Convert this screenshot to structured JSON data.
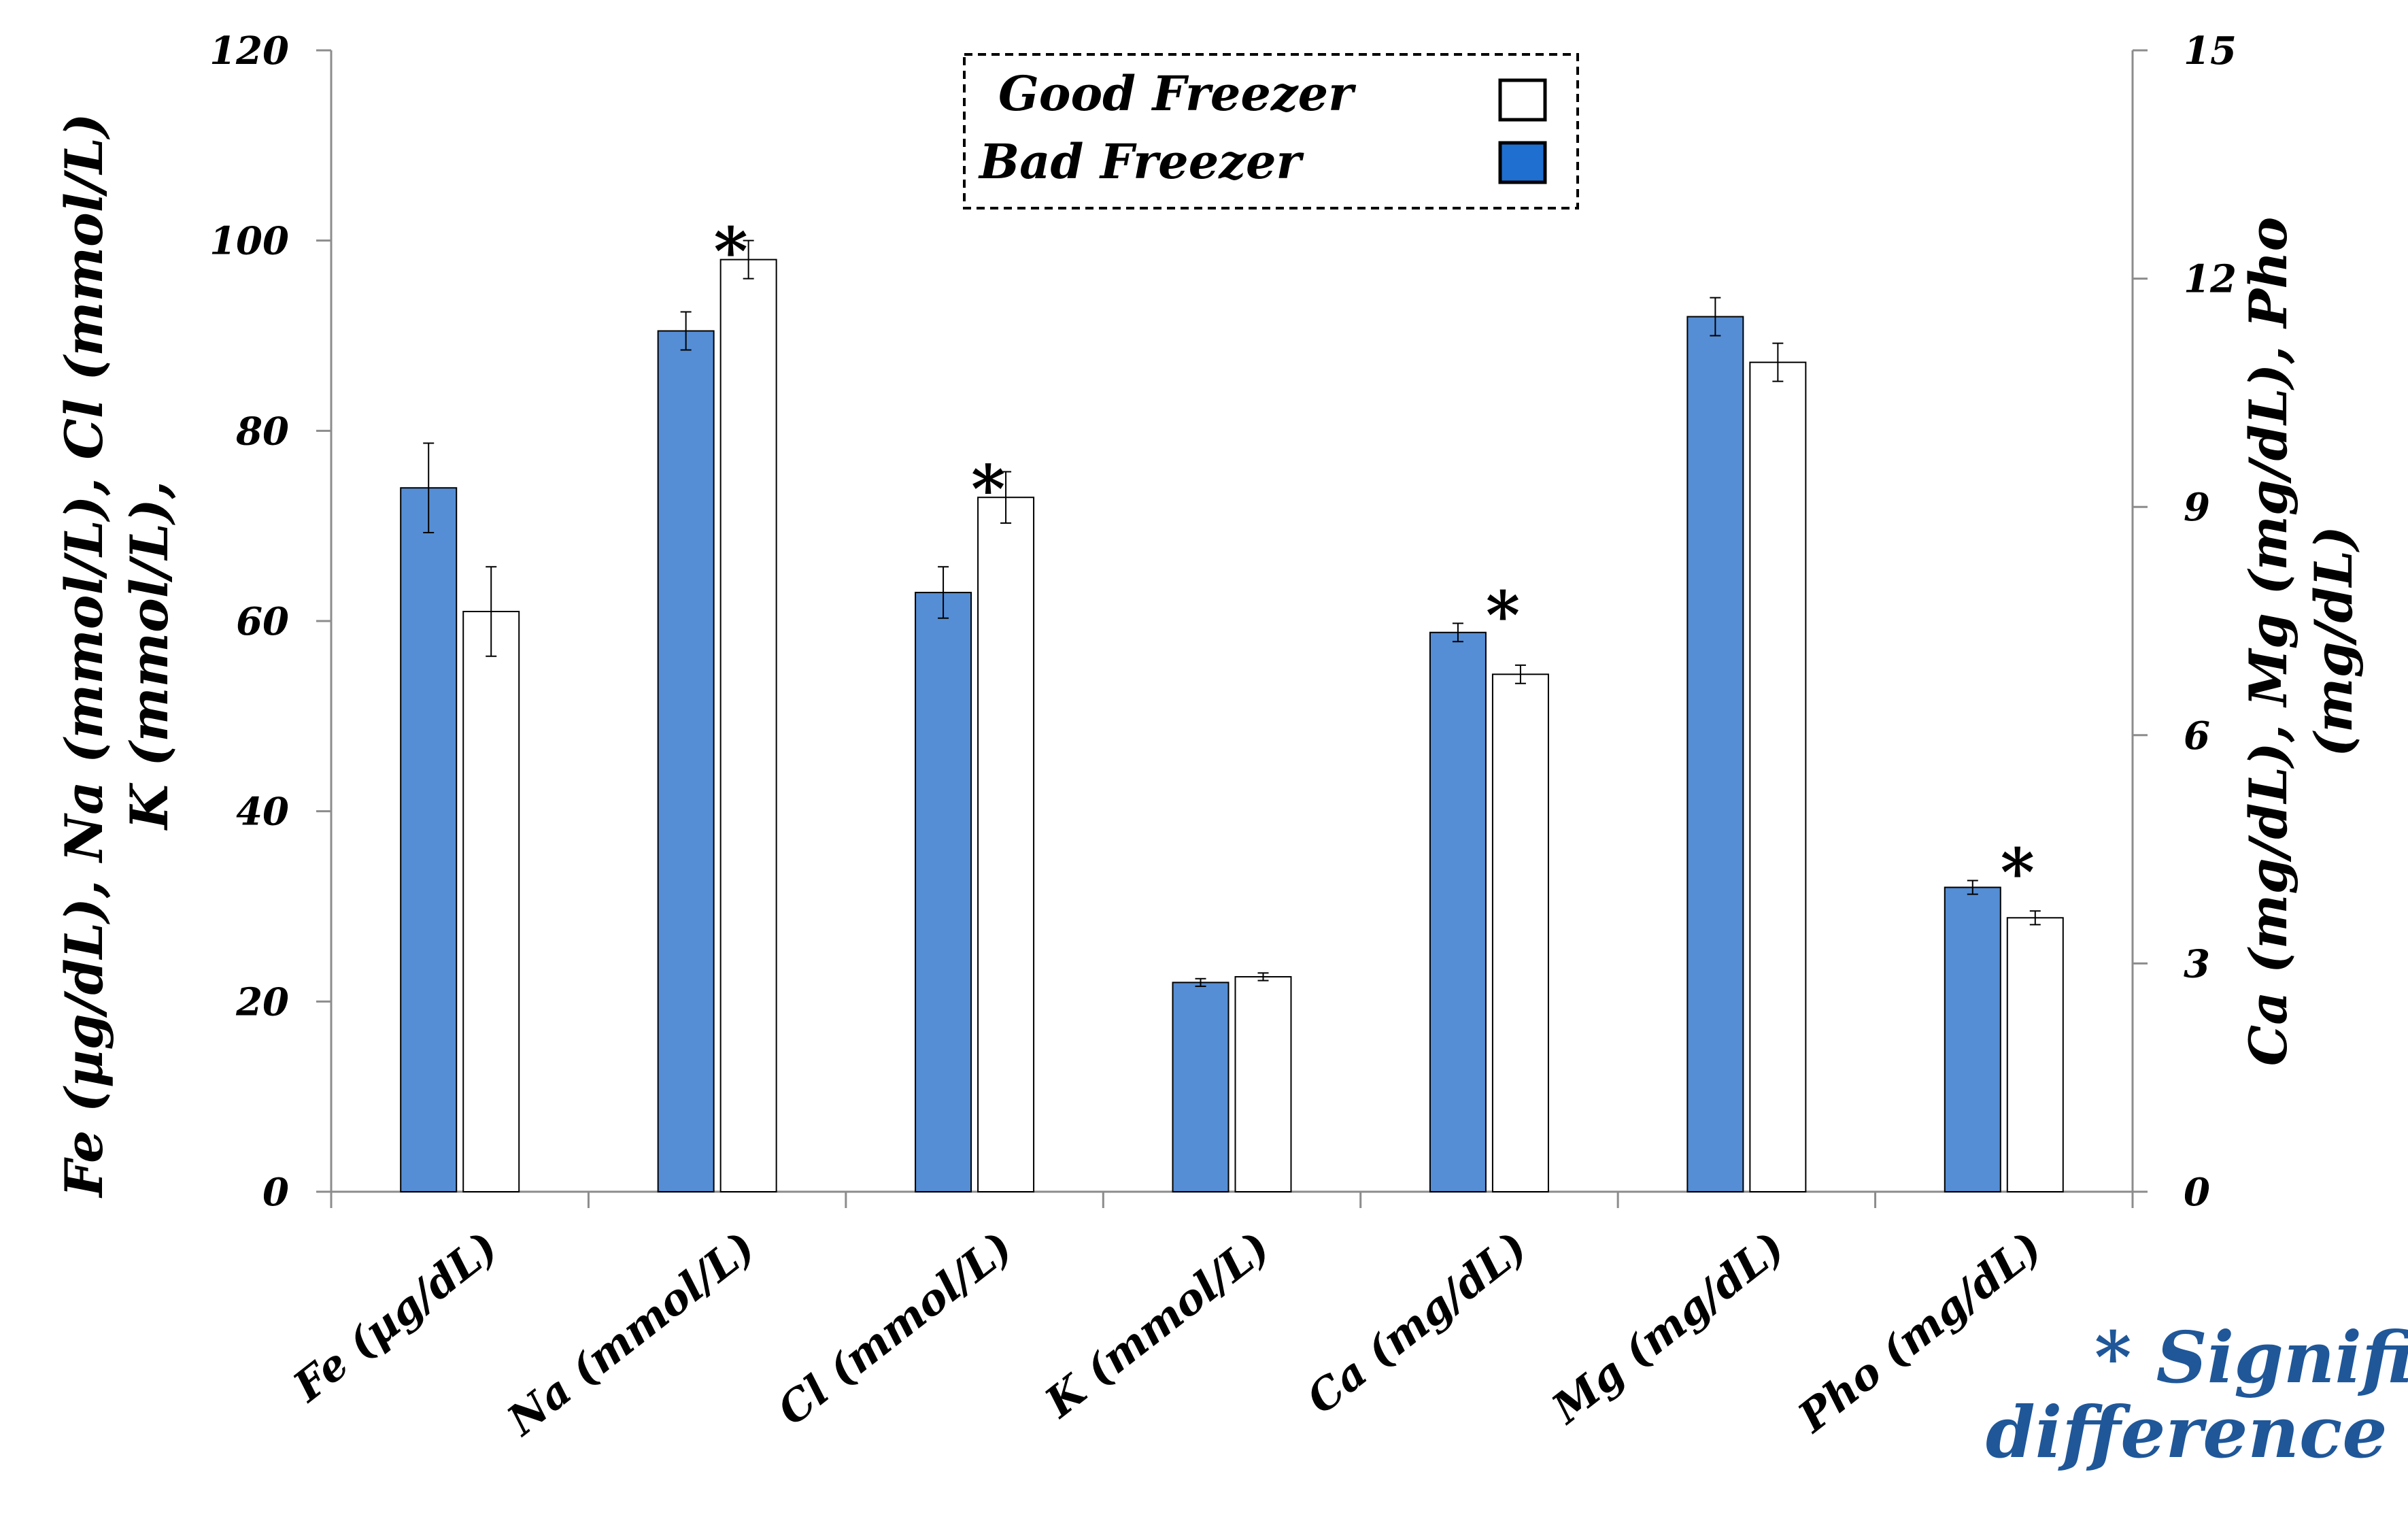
{
  "chart_data": {
    "type": "bar",
    "categories": [
      "Fe (µg/dL)",
      "Na (mmol/L)",
      "Cl (mmol/L)",
      "K (mmol/L)",
      "Ca (mg/dL)",
      "Mg (mg/dL)",
      "Pho (mg/dL)"
    ],
    "category_axis": [
      "left",
      "left",
      "left",
      "left",
      "right",
      "right",
      "right"
    ],
    "series": [
      {
        "name": "Bad Freezer",
        "color": "#558ED5",
        "values": [
          74,
          90.5,
          63,
          22,
          7.35,
          11.5,
          4.0
        ],
        "errors": [
          4.7,
          2.0,
          2.7,
          0.4,
          0.12,
          0.25,
          0.09
        ]
      },
      {
        "name": "Good Freezer",
        "color": "#FFFFFF",
        "values": [
          61,
          98,
          73,
          22.6,
          6.8,
          10.9,
          3.6
        ],
        "errors": [
          4.7,
          2.0,
          2.7,
          0.4,
          0.12,
          0.25,
          0.09
        ]
      }
    ],
    "significant": [
      false,
      true,
      true,
      false,
      true,
      false,
      true
    ],
    "significance_marker": "*",
    "left_axis": {
      "label": "Fe (µg/dL), Na (mmol/L), Cl (mmol/L), K (mmol/L),",
      "ylim": [
        0,
        120
      ],
      "ticks": [
        "0",
        "20",
        "40",
        "60",
        "80",
        "100",
        "120"
      ]
    },
    "right_axis": {
      "label": "Ca (mg/dL), Mg (mg/dL), Pho (mg/dL)",
      "ylim": [
        0,
        15
      ],
      "ticks": [
        "0",
        "3",
        "6",
        "9",
        "12",
        "15"
      ]
    },
    "legend": {
      "placement": "top-center",
      "entries": [
        {
          "label": "Good Freezer",
          "swatch": "#FFFFFF"
        },
        {
          "label": "Bad Freezer",
          "swatch": "#1F6FD0"
        }
      ]
    },
    "note": "* Significant difference",
    "note_color": "#1F5799",
    "grid": false
  }
}
